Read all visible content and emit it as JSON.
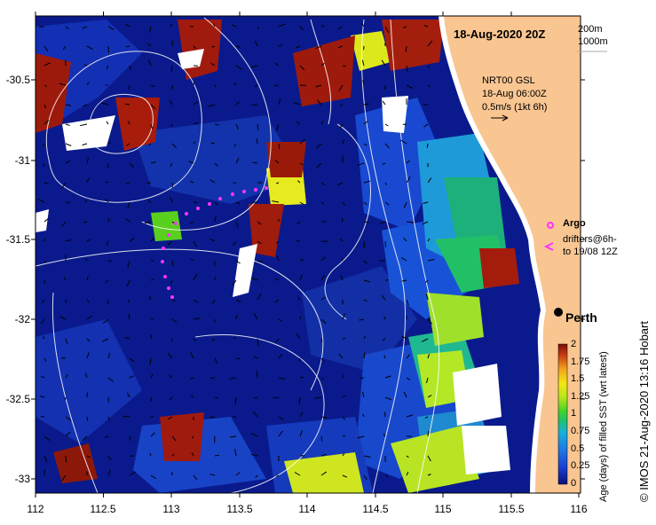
{
  "map": {
    "timestamp_title": "18-Aug-2020 20Z",
    "isobaths": [
      "200m",
      "1000m"
    ],
    "current_source": [
      "NRT00 GSL",
      "18-Aug 06:00Z",
      "0.5m/s (1kt 6h)"
    ],
    "legend": {
      "argo": "Argo",
      "drifters": [
        "drifters@6h-",
        "to 19/08 12Z"
      ]
    },
    "place": "Perth",
    "x_ticks": [
      "112",
      "112.5",
      "113",
      "113.5",
      "114",
      "114.5",
      "115",
      "115.5",
      "116"
    ],
    "y_ticks": [
      "-30.5",
      "-31",
      "-31.5",
      "-32",
      "-32.5",
      "-33"
    ],
    "colorbar": {
      "label": "Age (days) of filled SST (wrt latest)",
      "ticks": [
        "2",
        "1.75",
        "1.5",
        "1.25",
        "1",
        "0.75",
        "0.5",
        "0.25",
        "0"
      ]
    },
    "credit": "© IMOS 21-Aug-2020 13:16 Hobart",
    "colors": {
      "ocean_dark": "#0a1a8c",
      "land": "#f9c591",
      "argo": "#ff33ff"
    }
  }
}
